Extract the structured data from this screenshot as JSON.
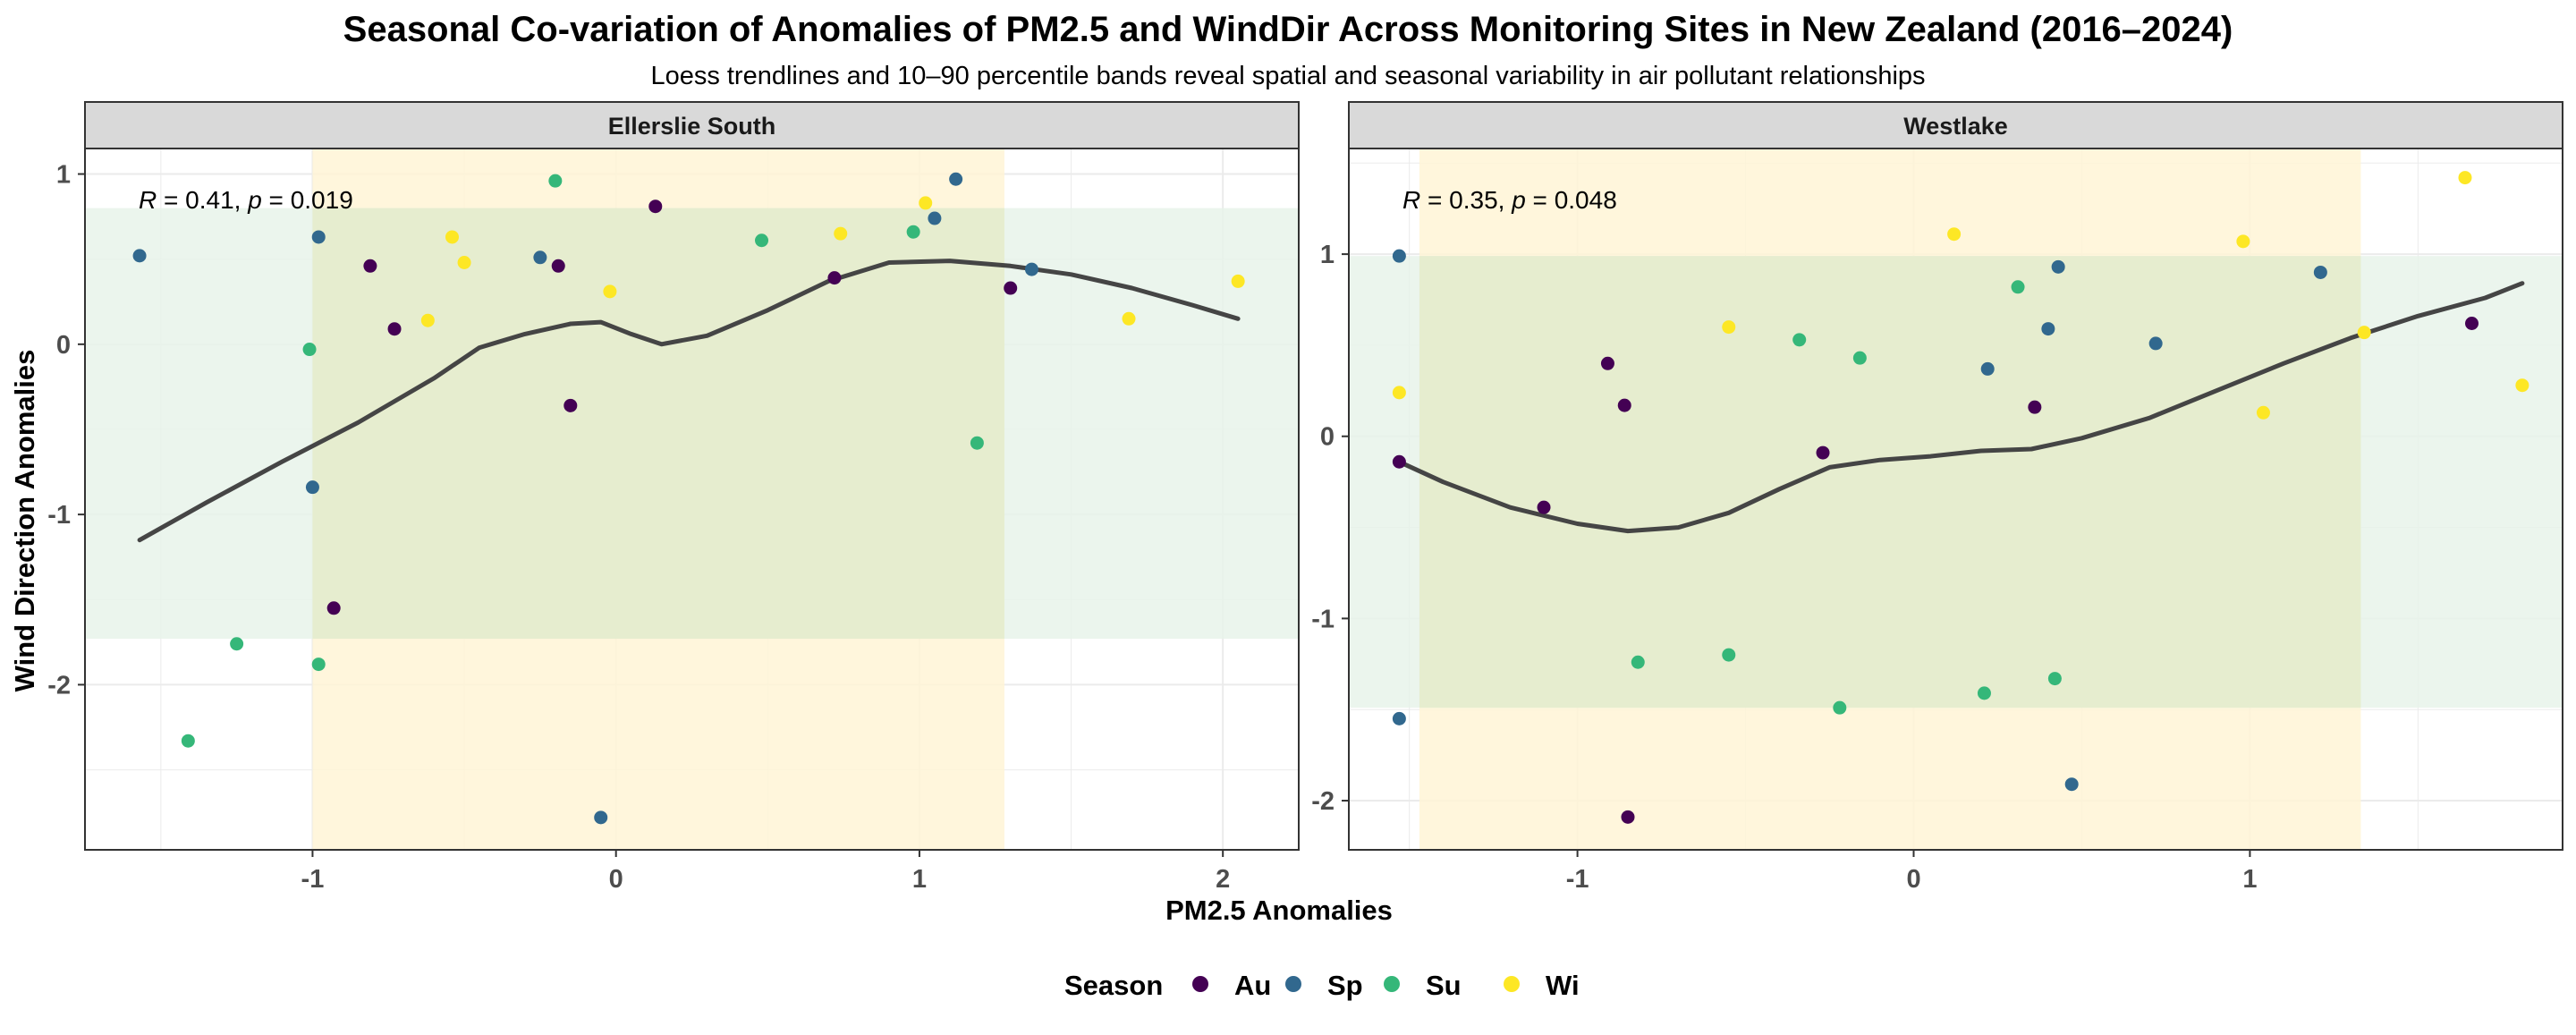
{
  "chart_data": {
    "type": "scatter",
    "title": "Seasonal Co-variation of Anomalies of PM2.5 and WindDir Across Monitoring Sites in New Zealand (2016–2024)",
    "subtitle": "Loess trendlines and 10–90 percentile bands reveal spatial and seasonal variability in air pollutant relationships",
    "xlabel": "PM2.5 Anomalies",
    "ylabel": "Wind Direction Anomalies",
    "legend": {
      "title": "Season",
      "position": "bottom",
      "entries": [
        {
          "key": "Au",
          "label": "Au",
          "color": "#440154"
        },
        {
          "key": "Sp",
          "label": "Sp",
          "color": "#31688E"
        },
        {
          "key": "Su",
          "label": "Su",
          "color": "#35B779"
        },
        {
          "key": "Wi",
          "label": "Wi",
          "color": "#FDE725"
        }
      ]
    },
    "grid": true,
    "band_colors": {
      "x_band": "#FFF4D6",
      "y_band": "#E7F3EA",
      "overlap": "#E6EDCF"
    },
    "trend_color": "#454545",
    "panels": [
      {
        "name": "Ellerslie South",
        "annotation": {
          "R": "0.41",
          "p": "0.019"
        },
        "xlim": [
          -1.75,
          2.25
        ],
        "ylim": [
          -2.97,
          1.15
        ],
        "xticks": [
          -1,
          0,
          1,
          2
        ],
        "yticks": [
          1,
          0,
          -1,
          -2
        ],
        "x_band": [
          -1.0,
          1.28
        ],
        "y_band": [
          -1.73,
          0.8
        ],
        "points": [
          {
            "x": -1.57,
            "y": 0.52,
            "season": "Sp"
          },
          {
            "x": -0.98,
            "y": 0.63,
            "season": "Sp"
          },
          {
            "x": -1.0,
            "y": -0.84,
            "season": "Sp"
          },
          {
            "x": -0.25,
            "y": 0.51,
            "season": "Sp"
          },
          {
            "x": -0.05,
            "y": -2.78,
            "season": "Sp"
          },
          {
            "x": 1.05,
            "y": 0.74,
            "season": "Sp"
          },
          {
            "x": 1.12,
            "y": 0.97,
            "season": "Sp"
          },
          {
            "x": 1.37,
            "y": 0.44,
            "season": "Sp"
          },
          {
            "x": -0.81,
            "y": 0.46,
            "season": "Au"
          },
          {
            "x": -0.73,
            "y": 0.09,
            "season": "Au"
          },
          {
            "x": -0.93,
            "y": -1.55,
            "season": "Au"
          },
          {
            "x": -0.19,
            "y": 0.46,
            "season": "Au"
          },
          {
            "x": -0.15,
            "y": -0.36,
            "season": "Au"
          },
          {
            "x": 0.13,
            "y": 0.81,
            "season": "Au"
          },
          {
            "x": 0.72,
            "y": 0.39,
            "season": "Au"
          },
          {
            "x": 1.3,
            "y": 0.33,
            "season": "Au"
          },
          {
            "x": -1.01,
            "y": -0.03,
            "season": "Su"
          },
          {
            "x": -0.98,
            "y": -1.88,
            "season": "Su"
          },
          {
            "x": -1.25,
            "y": -1.76,
            "season": "Su"
          },
          {
            "x": -1.41,
            "y": -2.33,
            "season": "Su"
          },
          {
            "x": -0.2,
            "y": 0.96,
            "season": "Su"
          },
          {
            "x": 0.48,
            "y": 0.61,
            "season": "Su"
          },
          {
            "x": 0.98,
            "y": 0.66,
            "season": "Su"
          },
          {
            "x": 1.19,
            "y": -0.58,
            "season": "Su"
          },
          {
            "x": -0.62,
            "y": 0.14,
            "season": "Wi"
          },
          {
            "x": -0.54,
            "y": 0.63,
            "season": "Wi"
          },
          {
            "x": -0.5,
            "y": 0.48,
            "season": "Wi"
          },
          {
            "x": -0.02,
            "y": 0.31,
            "season": "Wi"
          },
          {
            "x": 0.74,
            "y": 0.65,
            "season": "Wi"
          },
          {
            "x": 1.02,
            "y": 0.83,
            "season": "Wi"
          },
          {
            "x": 1.69,
            "y": 0.15,
            "season": "Wi"
          },
          {
            "x": 2.05,
            "y": 0.37,
            "season": "Wi"
          }
        ],
        "trend": [
          {
            "x": -1.57,
            "y": -1.15
          },
          {
            "x": -1.35,
            "y": -0.93
          },
          {
            "x": -1.1,
            "y": -0.69
          },
          {
            "x": -0.85,
            "y": -0.46
          },
          {
            "x": -0.6,
            "y": -0.2
          },
          {
            "x": -0.45,
            "y": -0.02
          },
          {
            "x": -0.3,
            "y": 0.06
          },
          {
            "x": -0.15,
            "y": 0.12
          },
          {
            "x": -0.05,
            "y": 0.13
          },
          {
            "x": 0.05,
            "y": 0.06
          },
          {
            "x": 0.15,
            "y": 0.0
          },
          {
            "x": 0.3,
            "y": 0.05
          },
          {
            "x": 0.5,
            "y": 0.2
          },
          {
            "x": 0.7,
            "y": 0.37
          },
          {
            "x": 0.9,
            "y": 0.48
          },
          {
            "x": 1.1,
            "y": 0.49
          },
          {
            "x": 1.3,
            "y": 0.46
          },
          {
            "x": 1.5,
            "y": 0.41
          },
          {
            "x": 1.7,
            "y": 0.33
          },
          {
            "x": 1.9,
            "y": 0.23
          },
          {
            "x": 2.05,
            "y": 0.15
          }
        ]
      },
      {
        "name": "Westlake",
        "annotation": {
          "R": "0.35",
          "p": "0.048"
        },
        "xlim": [
          -1.68,
          1.93
        ],
        "ylim": [
          -2.27,
          1.58
        ],
        "xticks": [
          -1,
          0,
          1
        ],
        "yticks": [
          1,
          0,
          -1,
          -2
        ],
        "x_band": [
          -1.47,
          1.33
        ],
        "y_band": [
          -1.49,
          0.99
        ],
        "points": [
          {
            "x": -1.53,
            "y": 0.99,
            "season": "Sp"
          },
          {
            "x": -1.53,
            "y": -1.55,
            "season": "Sp"
          },
          {
            "x": 0.22,
            "y": 0.37,
            "season": "Sp"
          },
          {
            "x": 0.4,
            "y": 0.59,
            "season": "Sp"
          },
          {
            "x": 0.43,
            "y": 0.93,
            "season": "Sp"
          },
          {
            "x": 0.72,
            "y": 0.51,
            "season": "Sp"
          },
          {
            "x": 1.21,
            "y": 0.9,
            "season": "Sp"
          },
          {
            "x": 0.47,
            "y": -1.91,
            "season": "Sp"
          },
          {
            "x": -1.53,
            "y": -0.14,
            "season": "Au"
          },
          {
            "x": -1.1,
            "y": -0.39,
            "season": "Au"
          },
          {
            "x": -0.91,
            "y": 0.4,
            "season": "Au"
          },
          {
            "x": -0.86,
            "y": 0.17,
            "season": "Au"
          },
          {
            "x": -0.85,
            "y": -2.09,
            "season": "Au"
          },
          {
            "x": -0.27,
            "y": -0.09,
            "season": "Au"
          },
          {
            "x": 0.36,
            "y": 0.16,
            "season": "Au"
          },
          {
            "x": 1.66,
            "y": 0.62,
            "season": "Au"
          },
          {
            "x": -0.82,
            "y": -1.24,
            "season": "Su"
          },
          {
            "x": -0.55,
            "y": -1.2,
            "season": "Su"
          },
          {
            "x": -0.34,
            "y": 0.53,
            "season": "Su"
          },
          {
            "x": -0.22,
            "y": -1.49,
            "season": "Su"
          },
          {
            "x": -0.16,
            "y": 0.43,
            "season": "Su"
          },
          {
            "x": 0.21,
            "y": -1.41,
            "season": "Su"
          },
          {
            "x": 0.31,
            "y": 0.82,
            "season": "Su"
          },
          {
            "x": 0.42,
            "y": -1.33,
            "season": "Su"
          },
          {
            "x": -1.53,
            "y": 0.24,
            "season": "Wi"
          },
          {
            "x": -0.55,
            "y": 0.6,
            "season": "Wi"
          },
          {
            "x": 0.12,
            "y": 1.11,
            "season": "Wi"
          },
          {
            "x": 0.98,
            "y": 1.07,
            "season": "Wi"
          },
          {
            "x": 1.04,
            "y": 0.13,
            "season": "Wi"
          },
          {
            "x": 1.34,
            "y": 0.57,
            "season": "Wi"
          },
          {
            "x": 1.64,
            "y": 1.42,
            "season": "Wi"
          },
          {
            "x": 1.81,
            "y": 0.28,
            "season": "Wi"
          }
        ],
        "trend": [
          {
            "x": -1.53,
            "y": -0.14
          },
          {
            "x": -1.4,
            "y": -0.25
          },
          {
            "x": -1.2,
            "y": -0.39
          },
          {
            "x": -1.0,
            "y": -0.48
          },
          {
            "x": -0.85,
            "y": -0.52
          },
          {
            "x": -0.7,
            "y": -0.5
          },
          {
            "x": -0.55,
            "y": -0.42
          },
          {
            "x": -0.4,
            "y": -0.29
          },
          {
            "x": -0.25,
            "y": -0.17
          },
          {
            "x": -0.1,
            "y": -0.13
          },
          {
            "x": 0.05,
            "y": -0.11
          },
          {
            "x": 0.2,
            "y": -0.08
          },
          {
            "x": 0.35,
            "y": -0.07
          },
          {
            "x": 0.5,
            "y": -0.01
          },
          {
            "x": 0.7,
            "y": 0.1
          },
          {
            "x": 0.9,
            "y": 0.25
          },
          {
            "x": 1.1,
            "y": 0.4
          },
          {
            "x": 1.3,
            "y": 0.54
          },
          {
            "x": 1.5,
            "y": 0.66
          },
          {
            "x": 1.7,
            "y": 0.76
          },
          {
            "x": 1.81,
            "y": 0.84
          }
        ]
      }
    ]
  }
}
